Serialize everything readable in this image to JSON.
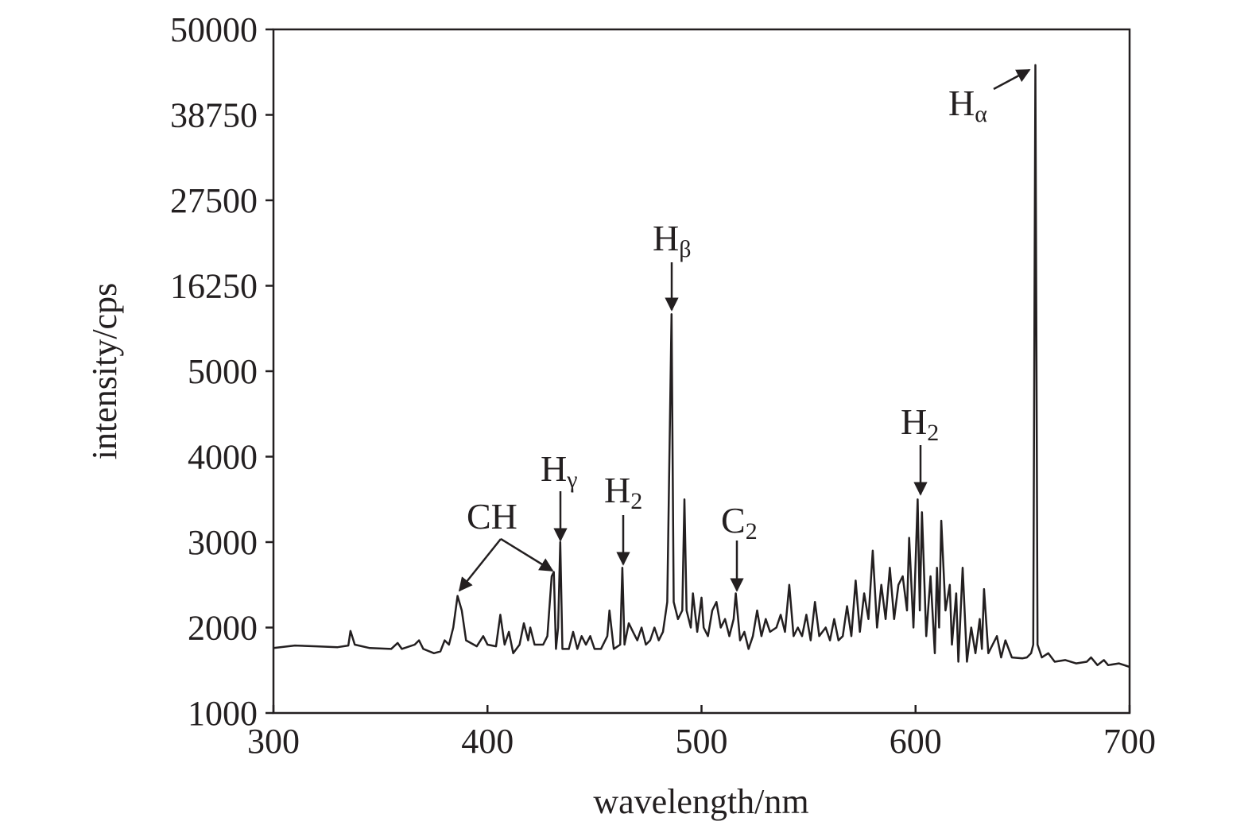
{
  "chart_data": {
    "type": "line",
    "xlabel": "wavelength/nm",
    "ylabel": "intensity/cps",
    "xlim": [
      300,
      700
    ],
    "xticks": [
      300,
      400,
      500,
      600,
      700
    ],
    "ylim": [
      1000,
      50000
    ],
    "yticks": [
      1000,
      2000,
      3000,
      4000,
      5000,
      16250,
      27500,
      38750,
      50000
    ],
    "color": "#231f20",
    "x": [
      300,
      310,
      320,
      330,
      335,
      336,
      338,
      345,
      355,
      358,
      360,
      366,
      368,
      370,
      375,
      378,
      380,
      382,
      384,
      386,
      388,
      390,
      395,
      398,
      400,
      404,
      406,
      408,
      410,
      412,
      415,
      417,
      419,
      420,
      422,
      426,
      428,
      430,
      431,
      432,
      433,
      434,
      435,
      438,
      440,
      442,
      444,
      446,
      448,
      450,
      453,
      456,
      457,
      459,
      462,
      463,
      464,
      466,
      468,
      470,
      472,
      474,
      476,
      478,
      480,
      482,
      484,
      486,
      487,
      489,
      491,
      492,
      493,
      495,
      496,
      498,
      500,
      501,
      503,
      505,
      507,
      509,
      511,
      513,
      515,
      516,
      518,
      520,
      522,
      524,
      526,
      528,
      530,
      532,
      535,
      537,
      539,
      541,
      543,
      545,
      547,
      549,
      551,
      553,
      555,
      558,
      560,
      562,
      564,
      566,
      568,
      570,
      572,
      574,
      576,
      578,
      580,
      582,
      584,
      586,
      588,
      590,
      592,
      594,
      596,
      597,
      599,
      601,
      602,
      603,
      605,
      607,
      609,
      610,
      611,
      612,
      614,
      616,
      617,
      619,
      620,
      622,
      624,
      626,
      628,
      630,
      631,
      632,
      634,
      636,
      638,
      640,
      642,
      645,
      650,
      652,
      654,
      655,
      656,
      657,
      659,
      662,
      665,
      670,
      675,
      680,
      682,
      685,
      688,
      690,
      695,
      700
    ],
    "values": [
      1760,
      1790,
      1780,
      1770,
      1790,
      1960,
      1800,
      1760,
      1750,
      1820,
      1750,
      1800,
      1850,
      1750,
      1700,
      1720,
      1850,
      1800,
      2000,
      2370,
      2200,
      1850,
      1780,
      1900,
      1800,
      1780,
      2150,
      1800,
      1950,
      1700,
      1800,
      2050,
      1850,
      2000,
      1800,
      1800,
      1900,
      2600,
      2650,
      1750,
      2000,
      3000,
      1750,
      1750,
      1950,
      1750,
      1900,
      1800,
      1900,
      1750,
      1750,
      1900,
      2200,
      1750,
      1800,
      2700,
      1800,
      2050,
      1950,
      1850,
      2000,
      1800,
      1850,
      2000,
      1850,
      1950,
      2300,
      12500,
      2300,
      2100,
      2200,
      3500,
      2200,
      2000,
      2400,
      1950,
      2350,
      2000,
      1900,
      2200,
      2300,
      2000,
      2100,
      1900,
      2100,
      2400,
      1850,
      1950,
      1750,
      1900,
      2200,
      1900,
      2100,
      1950,
      2000,
      2150,
      1950,
      2500,
      1900,
      2000,
      1900,
      2150,
      1850,
      2300,
      1900,
      2000,
      1850,
      2100,
      1850,
      1900,
      2250,
      1900,
      2550,
      1950,
      2400,
      2100,
      2900,
      2000,
      2500,
      2100,
      2700,
      2100,
      2500,
      2600,
      2200,
      3050,
      2000,
      3500,
      2200,
      3350,
      1900,
      2600,
      1700,
      2700,
      2000,
      3250,
      2200,
      2500,
      1800,
      2400,
      1600,
      2700,
      1600,
      2000,
      1700,
      2100,
      1750,
      2450,
      1700,
      1800,
      1900,
      1650,
      1850,
      1650,
      1640,
      1650,
      1700,
      1800,
      45300,
      1800,
      1650,
      1700,
      1600,
      1620,
      1580,
      1600,
      1650,
      1560,
      1620,
      1560,
      1580,
      1540
    ],
    "annotations": [
      {
        "text": "H",
        "sub": "α"
      },
      {
        "text": "H",
        "sub": "β"
      },
      {
        "text": "H",
        "sub": "γ"
      },
      {
        "text": "H",
        "sub": "2"
      },
      {
        "text": "C",
        "sub": "2"
      },
      {
        "text": "H",
        "sub": "2"
      },
      {
        "text": "CH"
      }
    ]
  }
}
